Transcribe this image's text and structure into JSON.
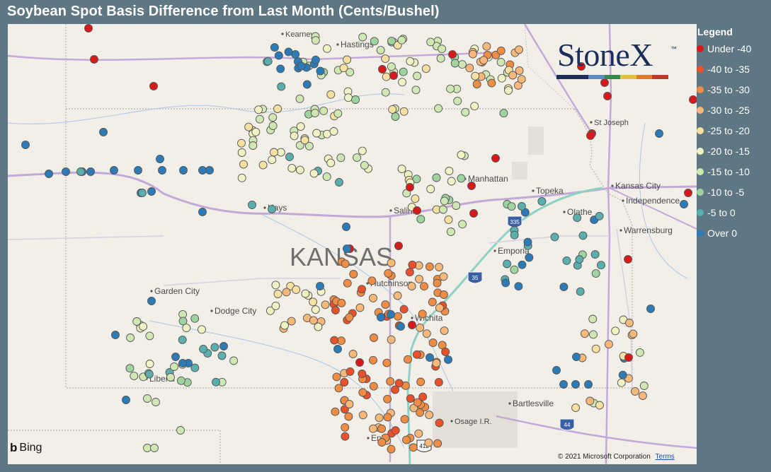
{
  "title": "Soybean Spot Basis Difference from Last Month (Cents/Bushel)",
  "legend": {
    "title": "Legend",
    "items": [
      {
        "label": "Under -40",
        "color": "#d7191c"
      },
      {
        "label": "-40 to -35",
        "color": "#e8512a"
      },
      {
        "label": "-35 to -30",
        "color": "#f08c43"
      },
      {
        "label": "-30 to -25",
        "color": "#f7b87a"
      },
      {
        "label": "-25 to -20",
        "color": "#f7e0a0"
      },
      {
        "label": "-20 to -15",
        "color": "#f1f3c4"
      },
      {
        "label": "-15 to -10",
        "color": "#cfe8b3"
      },
      {
        "label": "-10 to -5",
        "color": "#9fd4a0"
      },
      {
        "label": "-5 to 0",
        "color": "#5aaeae"
      },
      {
        "label": "Over 0",
        "color": "#2c7bb6"
      }
    ]
  },
  "map": {
    "state_label": "KANSAS",
    "cities": [
      "Kearney",
      "Hastings",
      "St Joseph",
      "Manhattan",
      "Topeka",
      "Kansas City",
      "Independence",
      "Olathe",
      "Hays",
      "Salina",
      "Warrensburg",
      "Emporia",
      "Hutchinson",
      "Garden City",
      "Dodge City",
      "Wichita",
      "Liberal",
      "Bartlesville",
      "Osage I.R.",
      "Enid"
    ],
    "highway_shields": [
      "335",
      "35",
      "44",
      "412"
    ]
  },
  "brand": {
    "name": "StoneX",
    "tm": "™"
  },
  "attribution": {
    "bing": "Bing",
    "copyright": "© 2021 Microsoft Corporation",
    "terms": "Terms"
  }
}
